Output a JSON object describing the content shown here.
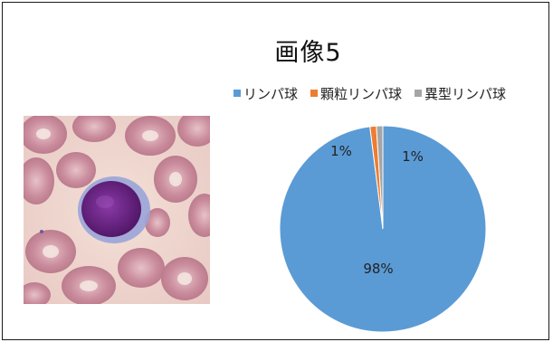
{
  "chart_data": {
    "type": "pie",
    "title": "画像5",
    "legend_position": "top",
    "slices": [
      {
        "name": "リンパ球",
        "value": 98,
        "label": "98%",
        "color": "#5b9bd5"
      },
      {
        "name": "顆粒リンパ球",
        "value": 1,
        "label": "1%",
        "color": "#ed7d31"
      },
      {
        "name": "異型リンパ球",
        "value": 1,
        "label": "1%",
        "color": "#a5a5a5"
      }
    ]
  },
  "image": {
    "description": "Micrograph: large lymphocyte with deep purple nucleus among pink red blood cells"
  }
}
